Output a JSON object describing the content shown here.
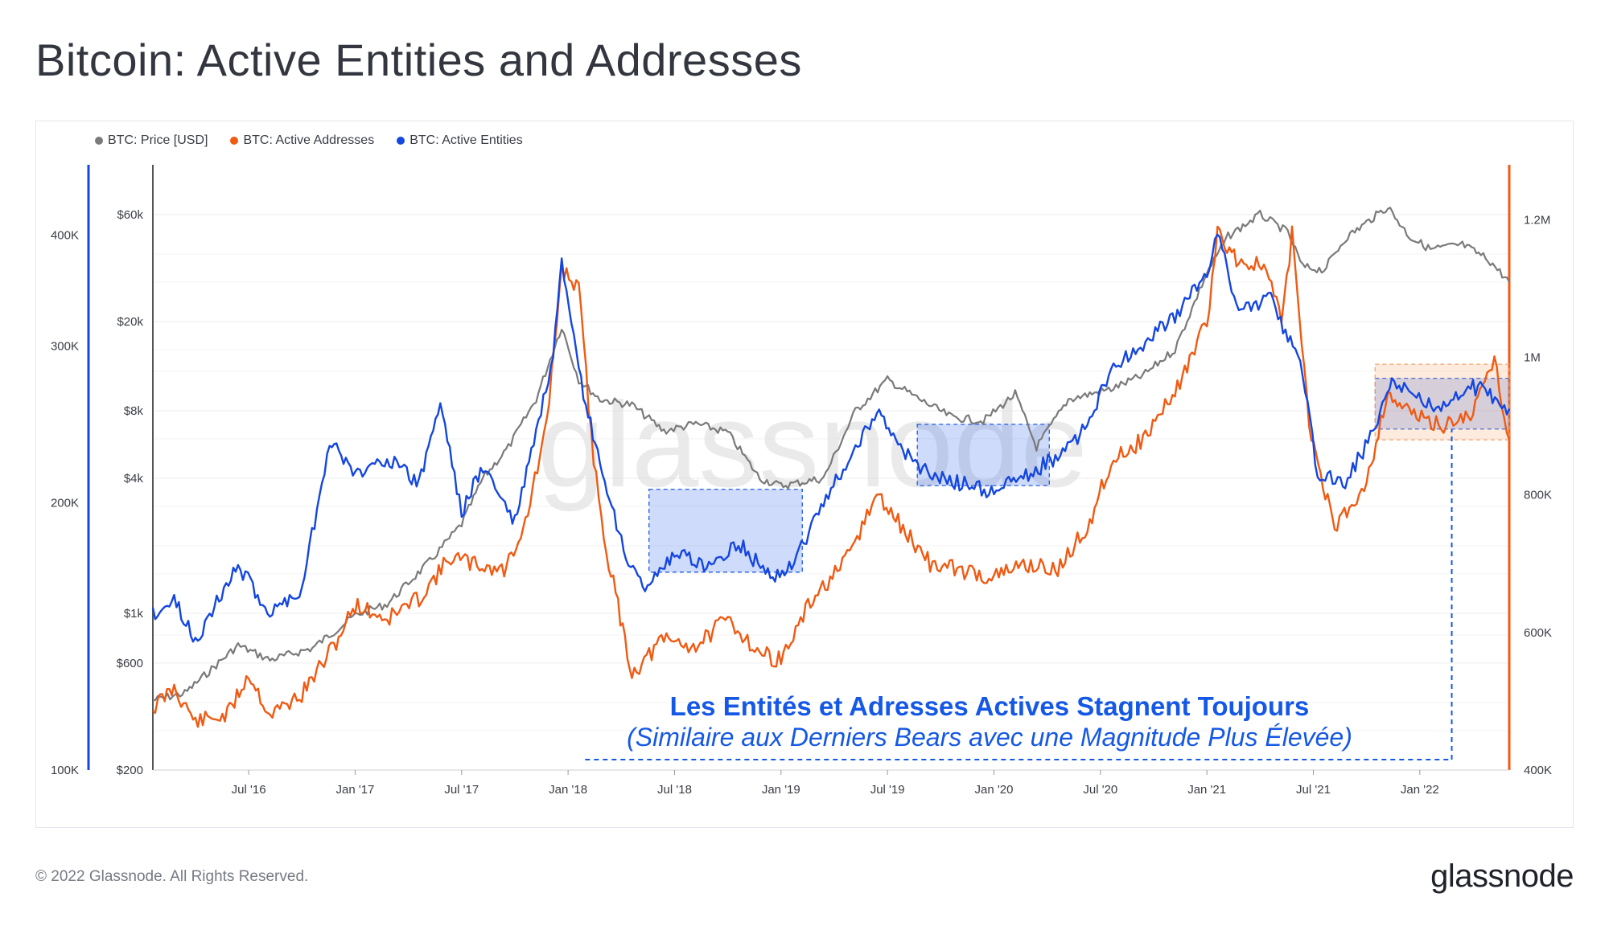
{
  "page": {
    "title": "Bitcoin: Active Entities and Addresses",
    "footer": "© 2022 Glassnode. All Rights Reserved.",
    "brand": "glassnode",
    "watermark": "glassnode"
  },
  "colors": {
    "price": "#7a7a7a",
    "addresses": "#f05a12",
    "entities": "#1446e0",
    "box_blue": "#1f5be8",
    "box_orange": "#f5a36a",
    "annotation": "#1558e6"
  },
  "legend": [
    {
      "label": "BTC: Price [USD]",
      "color": "#7a7a7a"
    },
    {
      "label": "BTC: Active Addresses",
      "color": "#f05a12"
    },
    {
      "label": "BTC: Active Entities",
      "color": "#1446e0"
    }
  ],
  "annotation": {
    "title": "Les Entités et Adresses Actives Stagnent Toujours",
    "subtitle": "(Similaire aux Derniers Bears avec une Magnitude Plus Élevée)"
  },
  "chart_data": {
    "type": "line",
    "x_ticks": [
      "Jul '16",
      "Jan '17",
      "Jul '17",
      "Jan '18",
      "Jul '18",
      "Jan '19",
      "Jul '19",
      "Jan '20",
      "Jul '20",
      "Jan '21",
      "Jul '21",
      "Jan '22"
    ],
    "x_tick_dates": [
      2016.5,
      2017.0,
      2017.5,
      2018.0,
      2018.5,
      2019.0,
      2019.5,
      2020.0,
      2020.5,
      2021.0,
      2021.5,
      2022.0
    ],
    "x_range": [
      2016.05,
      2022.42
    ],
    "axes": {
      "entities_axis": {
        "side": "left-outer",
        "scale": "log",
        "range": [
          100000,
          480000
        ],
        "ticks": [
          {
            "label": "100K",
            "value": 100000
          },
          {
            "label": "200K",
            "value": 200000
          },
          {
            "label": "300K",
            "value": 300000
          },
          {
            "label": "400K",
            "value": 400000
          }
        ]
      },
      "price_axis": {
        "side": "left-inner",
        "scale": "log",
        "range": [
          200,
          100000
        ],
        "ticks": [
          {
            "label": "$200",
            "value": 200
          },
          {
            "label": "$600",
            "value": 600
          },
          {
            "label": "$1k",
            "value": 1000
          },
          {
            "label": "$4k",
            "value": 4000
          },
          {
            "label": "$8k",
            "value": 8000
          },
          {
            "label": "$20k",
            "value": 20000
          },
          {
            "label": "$60k",
            "value": 60000
          }
        ]
      },
      "addresses_axis": {
        "side": "right",
        "scale": "linear",
        "range": [
          400000,
          1280000
        ],
        "ticks": [
          {
            "label": "400K",
            "value": 400000
          },
          {
            "label": "600K",
            "value": 600000
          },
          {
            "label": "800K",
            "value": 800000
          },
          {
            "label": "1M",
            "value": 1000000
          },
          {
            "label": "1.2M",
            "value": 1200000
          }
        ]
      }
    },
    "series": [
      {
        "name": "BTC: Price [USD]",
        "axis": "price_axis",
        "points": [
          [
            2016.05,
            410
          ],
          [
            2016.2,
            440
          ],
          [
            2016.45,
            720
          ],
          [
            2016.6,
            620
          ],
          [
            2016.8,
            700
          ],
          [
            2017.0,
            980
          ],
          [
            2017.15,
            1100
          ],
          [
            2017.35,
            1700
          ],
          [
            2017.5,
            2500
          ],
          [
            2017.6,
            4000
          ],
          [
            2017.72,
            5500
          ],
          [
            2017.85,
            9000
          ],
          [
            2017.97,
            19000
          ],
          [
            2018.05,
            11000
          ],
          [
            2018.15,
            9000
          ],
          [
            2018.3,
            8500
          ],
          [
            2018.45,
            6500
          ],
          [
            2018.6,
            7000
          ],
          [
            2018.75,
            6400
          ],
          [
            2018.9,
            4000
          ],
          [
            2019.0,
            3700
          ],
          [
            2019.2,
            4000
          ],
          [
            2019.35,
            8000
          ],
          [
            2019.5,
            11000
          ],
          [
            2019.65,
            9000
          ],
          [
            2019.8,
            7500
          ],
          [
            2019.95,
            7200
          ],
          [
            2020.1,
            9500
          ],
          [
            2020.2,
            5500
          ],
          [
            2020.35,
            9000
          ],
          [
            2020.55,
            10000
          ],
          [
            2020.7,
            11500
          ],
          [
            2020.85,
            15000
          ],
          [
            2021.0,
            33000
          ],
          [
            2021.1,
            48000
          ],
          [
            2021.25,
            60000
          ],
          [
            2021.38,
            50000
          ],
          [
            2021.45,
            35000
          ],
          [
            2021.55,
            34000
          ],
          [
            2021.65,
            47000
          ],
          [
            2021.85,
            65000
          ],
          [
            2021.95,
            48000
          ],
          [
            2022.05,
            42000
          ],
          [
            2022.2,
            44000
          ],
          [
            2022.32,
            38000
          ],
          [
            2022.42,
            30000
          ]
        ]
      },
      {
        "name": "BTC: Active Addresses",
        "axis": "addresses_axis",
        "points": [
          [
            2016.05,
            490000
          ],
          [
            2016.15,
            520000
          ],
          [
            2016.25,
            470000
          ],
          [
            2016.4,
            480000
          ],
          [
            2016.5,
            540000
          ],
          [
            2016.6,
            480000
          ],
          [
            2016.75,
            510000
          ],
          [
            2016.9,
            580000
          ],
          [
            2017.0,
            640000
          ],
          [
            2017.15,
            620000
          ],
          [
            2017.3,
            650000
          ],
          [
            2017.45,
            710000
          ],
          [
            2017.55,
            700000
          ],
          [
            2017.7,
            690000
          ],
          [
            2017.8,
            760000
          ],
          [
            2017.9,
            900000
          ],
          [
            2017.97,
            1130000
          ],
          [
            2018.05,
            1100000
          ],
          [
            2018.12,
            850000
          ],
          [
            2018.18,
            720000
          ],
          [
            2018.3,
            540000
          ],
          [
            2018.45,
            590000
          ],
          [
            2018.6,
            580000
          ],
          [
            2018.75,
            620000
          ],
          [
            2018.9,
            570000
          ],
          [
            2019.0,
            560000
          ],
          [
            2019.15,
            650000
          ],
          [
            2019.3,
            700000
          ],
          [
            2019.45,
            800000
          ],
          [
            2019.55,
            760000
          ],
          [
            2019.7,
            700000
          ],
          [
            2019.85,
            690000
          ],
          [
            2020.0,
            680000
          ],
          [
            2020.15,
            700000
          ],
          [
            2020.3,
            690000
          ],
          [
            2020.45,
            760000
          ],
          [
            2020.55,
            850000
          ],
          [
            2020.7,
            880000
          ],
          [
            2020.85,
            950000
          ],
          [
            2021.0,
            1050000
          ],
          [
            2021.05,
            1180000
          ],
          [
            2021.15,
            1140000
          ],
          [
            2021.28,
            1130000
          ],
          [
            2021.35,
            1050000
          ],
          [
            2021.4,
            1180000
          ],
          [
            2021.48,
            900000
          ],
          [
            2021.6,
            750000
          ],
          [
            2021.75,
            820000
          ],
          [
            2021.85,
            950000
          ],
          [
            2021.95,
            920000
          ],
          [
            2022.1,
            900000
          ],
          [
            2022.25,
            920000
          ],
          [
            2022.35,
            1000000
          ],
          [
            2022.42,
            880000
          ]
        ]
      },
      {
        "name": "BTC: Active Entities",
        "axis": "entities_axis",
        "points": [
          [
            2016.05,
            150000
          ],
          [
            2016.15,
            155000
          ],
          [
            2016.25,
            140000
          ],
          [
            2016.45,
            170000
          ],
          [
            2016.6,
            150000
          ],
          [
            2016.75,
            160000
          ],
          [
            2016.88,
            235000
          ],
          [
            2017.0,
            215000
          ],
          [
            2017.15,
            225000
          ],
          [
            2017.3,
            210000
          ],
          [
            2017.4,
            260000
          ],
          [
            2017.5,
            195000
          ],
          [
            2017.6,
            220000
          ],
          [
            2017.75,
            190000
          ],
          [
            2017.85,
            240000
          ],
          [
            2017.93,
            290000
          ],
          [
            2017.97,
            370000
          ],
          [
            2018.05,
            280000
          ],
          [
            2018.15,
            220000
          ],
          [
            2018.25,
            180000
          ],
          [
            2018.35,
            160000
          ],
          [
            2018.5,
            175000
          ],
          [
            2018.65,
            170000
          ],
          [
            2018.8,
            180000
          ],
          [
            2018.95,
            165000
          ],
          [
            2019.05,
            170000
          ],
          [
            2019.2,
            200000
          ],
          [
            2019.35,
            230000
          ],
          [
            2019.45,
            255000
          ],
          [
            2019.55,
            230000
          ],
          [
            2019.7,
            215000
          ],
          [
            2019.85,
            210000
          ],
          [
            2020.0,
            205000
          ],
          [
            2020.15,
            215000
          ],
          [
            2020.3,
            225000
          ],
          [
            2020.45,
            245000
          ],
          [
            2020.55,
            285000
          ],
          [
            2020.7,
            300000
          ],
          [
            2020.85,
            325000
          ],
          [
            2021.0,
            360000
          ],
          [
            2021.05,
            400000
          ],
          [
            2021.15,
            330000
          ],
          [
            2021.3,
            340000
          ],
          [
            2021.45,
            280000
          ],
          [
            2021.52,
            215000
          ],
          [
            2021.65,
            210000
          ],
          [
            2021.78,
            240000
          ],
          [
            2021.88,
            275000
          ],
          [
            2021.95,
            265000
          ],
          [
            2022.1,
            255000
          ],
          [
            2022.25,
            270000
          ],
          [
            2022.33,
            265000
          ],
          [
            2022.42,
            255000
          ]
        ]
      }
    ],
    "highlight_boxes": [
      {
        "series": "entities",
        "x_range": [
          2018.38,
          2019.1
        ],
        "entities_range": [
          167000,
          207000
        ]
      },
      {
        "series": "entities",
        "x_range": [
          2019.64,
          2020.26
        ],
        "entities_range": [
          209000,
          245000
        ]
      },
      {
        "series": "entities",
        "x_range": [
          2021.79,
          2022.42
        ],
        "entities_range": [
          242000,
          276000
        ]
      },
      {
        "series": "addresses",
        "x_range": [
          2021.79,
          2022.42
        ],
        "addresses_range": [
          880000,
          990000
        ]
      }
    ],
    "annotation_range": [
      2018.08,
      2022.15
    ]
  }
}
